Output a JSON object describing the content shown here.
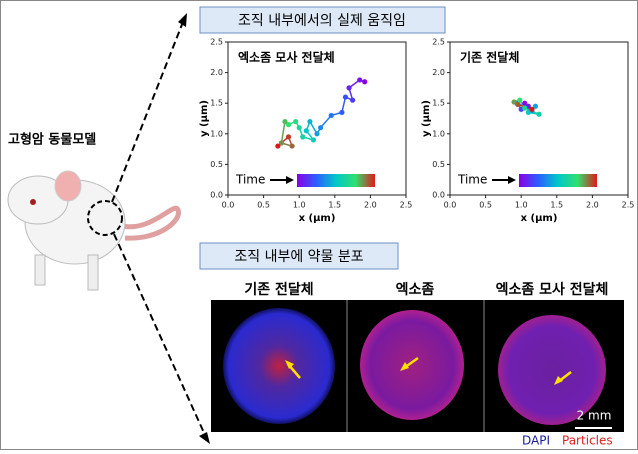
{
  "mouse_label": "고형암 동물모델",
  "panel_top": {
    "title": "조직 내부에서의 실제 움직임"
  },
  "chart_data": [
    {
      "type": "line",
      "title": "엑소좀 모사 전달체",
      "x_label": "x (μm)",
      "y_label": "y (μm)",
      "colorbar_label": "Time",
      "colormap": [
        "#8a00e6",
        "#2a60ff",
        "#00c8c8",
        "#30e070",
        "#e01818"
      ],
      "series": [
        {
          "x": [
            1.92,
            1.85,
            1.7,
            1.75,
            1.65,
            1.6,
            1.45,
            1.3,
            1.25,
            1.15,
            1.1,
            1.2,
            1.05,
            1.0,
            0.95,
            0.85,
            0.8,
            0.75,
            0.9,
            0.85,
            0.7
          ],
          "values": [
            1.85,
            1.88,
            1.75,
            1.55,
            1.6,
            1.35,
            1.3,
            1.1,
            1.0,
            1.2,
            1.05,
            0.9,
            0.95,
            1.1,
            1.2,
            1.15,
            1.2,
            0.85,
            0.8,
            0.95,
            0.8
          ]
        }
      ],
      "xlim": [
        0,
        2.5
      ],
      "ylim": [
        0,
        2.5
      ],
      "xticks": [
        {
          "value": 0,
          "label": "0.0"
        },
        0.5,
        {
          "value": 1,
          "label": "1.0"
        },
        1.5,
        {
          "value": 2,
          "label": "2.0"
        },
        2.5
      ],
      "yticks": [
        {
          "value": 0,
          "label": "0.0"
        },
        0.5,
        {
          "value": 1,
          "label": "1.0"
        },
        1.5,
        {
          "value": 2,
          "label": "2.0"
        },
        2.5
      ]
    },
    {
      "type": "line",
      "title": "기존 전달체",
      "x_label": "x (μm)",
      "y_label": "y (μm)",
      "colorbar_label": "Time",
      "colormap": [
        "#8a00e6",
        "#2a60ff",
        "#00c8c8",
        "#30e070",
        "#e01818"
      ],
      "series": [
        {
          "x": [
            1.05,
            1.1,
            1.0,
            0.95,
            1.15,
            1.2,
            1.1,
            1.25,
            1.05,
            0.98,
            0.9,
            0.95,
            1.15
          ],
          "values": [
            1.5,
            1.45,
            1.4,
            1.5,
            1.38,
            1.45,
            1.35,
            1.32,
            1.42,
            1.55,
            1.52,
            1.48,
            1.4
          ]
        }
      ],
      "xlim": [
        0,
        2.5
      ],
      "ylim": [
        0,
        2.5
      ],
      "xticks": [
        {
          "value": 0,
          "label": "0.0"
        },
        0.5,
        {
          "value": 1,
          "label": "1.0"
        },
        1.5,
        {
          "value": 2,
          "label": "2.0"
        },
        2.5
      ],
      "yticks": [
        {
          "value": 0,
          "label": "0.0"
        },
        0.5,
        {
          "value": 1,
          "label": "1.0"
        },
        1.5,
        {
          "value": 2,
          "label": "2.0"
        },
        2.5
      ]
    }
  ],
  "panel_bottom": {
    "title": "조직 내부에 약물 분포",
    "image_labels": [
      "기존 전달체",
      "엑소좀",
      "엑소좀 모사 전달체"
    ],
    "scale": "2 mm",
    "legend": [
      {
        "name": "DAPI",
        "color": "#1a1aa0"
      },
      {
        "name": "Particles",
        "color": "#e02020"
      }
    ]
  }
}
